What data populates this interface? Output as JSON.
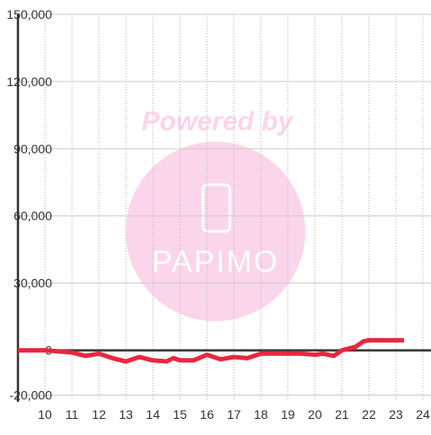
{
  "chart_data": {
    "type": "line",
    "watermark": {
      "title": "Powered by",
      "logo": "PAPIMO"
    },
    "x": [
      9,
      10,
      10.5,
      11,
      11.5,
      12,
      12.5,
      13,
      13.5,
      14,
      14.5,
      14.75,
      15,
      15.5,
      16,
      16.5,
      17,
      17.5,
      18,
      18.5,
      19,
      19.5,
      20,
      20.3,
      20.7,
      21,
      21.5,
      21.8,
      22,
      22.5,
      23.3
    ],
    "series": [
      {
        "name": "value",
        "color": "#e8273f",
        "values": [
          0,
          0,
          -500,
          -1000,
          -2500,
          -1500,
          -3500,
          -5000,
          -3000,
          -4500,
          -5000,
          -3500,
          -4500,
          -4500,
          -2000,
          -4000,
          -3000,
          -3500,
          -1500,
          -1500,
          -1500,
          -1500,
          -2000,
          -1500,
          -2500,
          0,
          1500,
          4000,
          4500,
          4500,
          4500
        ]
      }
    ],
    "xlim": [
      9,
      24.3
    ],
    "xticks": [
      10,
      11,
      12,
      13,
      14,
      15,
      16,
      17,
      18,
      19,
      20,
      21,
      22,
      23,
      24
    ],
    "ylim": [
      -23000,
      150000
    ],
    "yticks": [
      {
        "value": -20000,
        "label": "-20,000"
      },
      0,
      {
        "value": 30000,
        "label": "30,000"
      },
      {
        "value": 60000,
        "label": "60,000"
      },
      {
        "value": 90000,
        "label": "90,000"
      },
      {
        "value": 120000,
        "label": "120,000"
      },
      {
        "value": 150000,
        "label": "150,000"
      }
    ],
    "grid": true
  }
}
